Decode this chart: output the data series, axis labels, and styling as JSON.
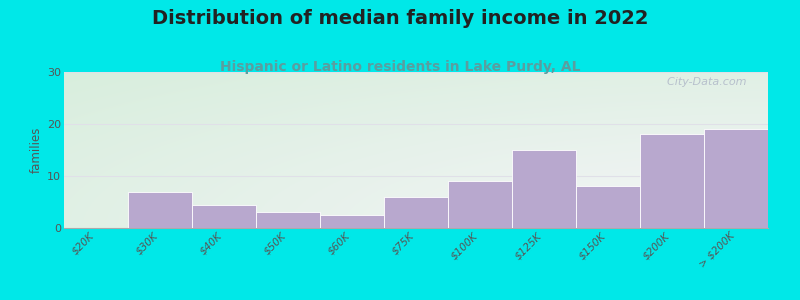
{
  "title": "Distribution of median family income in 2022",
  "subtitle": "Hispanic or Latino residents in Lake Purdy, AL",
  "ylabel": "families",
  "categories": [
    "$20K",
    "$30K",
    "$40K",
    "$50K",
    "$60K",
    "$75K",
    "$100K",
    "$125K",
    "$150K",
    "$200K",
    "> $200K"
  ],
  "values": [
    0,
    7,
    4.5,
    3,
    2.5,
    6,
    9,
    15,
    8,
    18,
    19
  ],
  "bar_color": "#b8a8ce",
  "bg_outer": "#00e8e8",
  "bg_plot_topleft": "#d8eedd",
  "bg_plot_bottomright": "#f5f5f8",
  "ylim": [
    0,
    30
  ],
  "yticks": [
    0,
    10,
    20,
    30
  ],
  "title_fontsize": 14,
  "subtitle_fontsize": 10,
  "title_color": "#222222",
  "subtitle_color": "#5a9ea0",
  "ylabel_color": "#555555",
  "tick_color": "#555555",
  "grid_color": "#e0e0e8",
  "watermark": "  City-Data.com",
  "watermark_color": "#b0b8c8"
}
